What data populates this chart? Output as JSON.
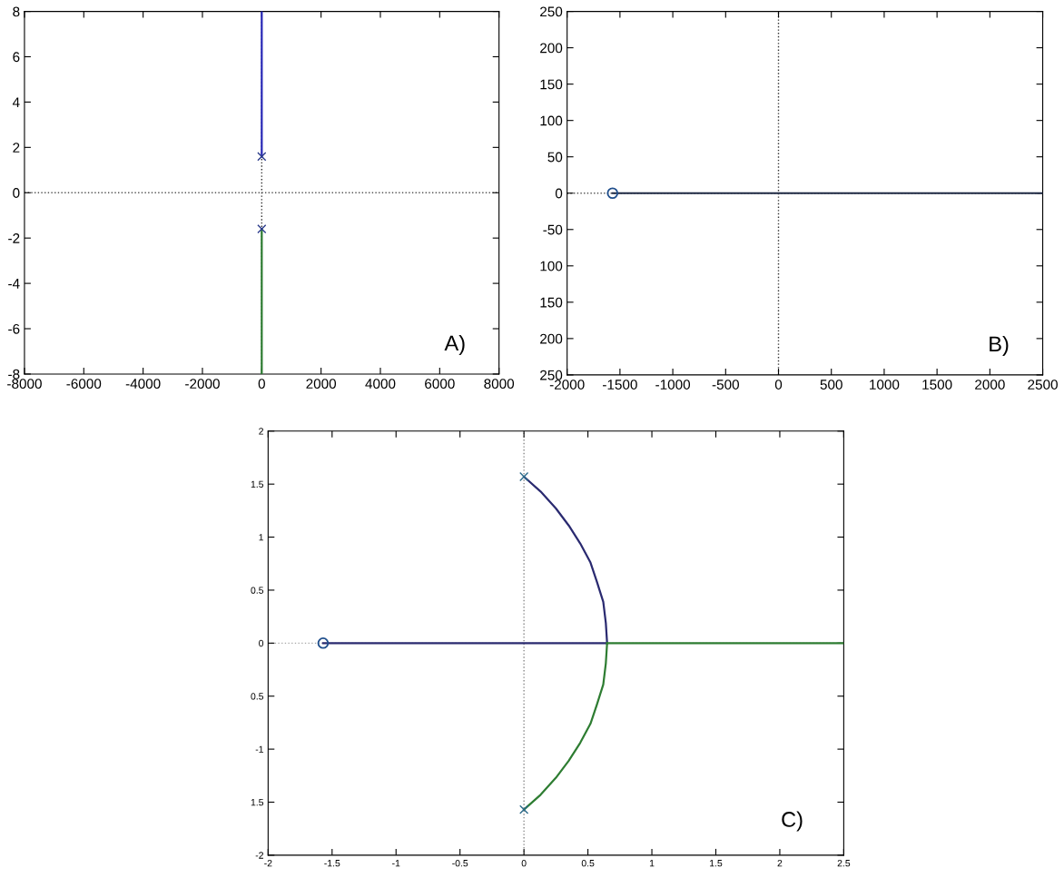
{
  "chart_data": [
    {
      "type": "line",
      "xlim": [
        -8000,
        8000
      ],
      "ylim": [
        -8,
        8
      ],
      "xticks": [
        -8000,
        -6000,
        -4000,
        -2000,
        0,
        2000,
        4000,
        6000,
        8000
      ],
      "yticks": [
        -8,
        -6,
        -4,
        -2,
        0,
        2,
        4,
        6,
        8
      ],
      "grid": false,
      "annotations": [
        "A)"
      ],
      "ref_lines": [
        {
          "axis": "x",
          "value": 0,
          "color": "#333333",
          "line_style": "dotted"
        },
        {
          "axis": "y",
          "value": 0,
          "color": "#555555",
          "line_style": "dotted"
        }
      ],
      "series": [
        {
          "type": "line",
          "color": "#2a2ab8",
          "x": [
            0,
            0
          ],
          "values": [
            1.6,
            8
          ]
        },
        {
          "type": "line",
          "color": "#2e7d32",
          "x": [
            0,
            0
          ],
          "values": [
            -1.6,
            -8
          ]
        },
        {
          "type": "scatter",
          "marker": "cross",
          "color": "#2a3a8a",
          "x": [
            0,
            0
          ],
          "values": [
            1.6,
            -1.6
          ]
        }
      ]
    },
    {
      "type": "line",
      "xlim": [
        -2000,
        2500
      ],
      "ylim": [
        -250,
        250
      ],
      "xticks": [
        -2000,
        -1500,
        -1000,
        -500,
        0,
        500,
        1000,
        1500,
        2000,
        2500
      ],
      "yticks": [
        {
          "value": -250,
          "label": "250"
        },
        {
          "value": -200,
          "label": "200"
        },
        {
          "value": -150,
          "label": "150"
        },
        {
          "value": -100,
          "label": "100"
        },
        -50,
        0,
        50,
        100,
        150,
        200,
        250
      ],
      "grid": false,
      "annotations": [
        "B)"
      ],
      "ref_lines": [
        {
          "axis": "x",
          "value": 0,
          "color": "#333333",
          "line_style": "dotted"
        },
        {
          "axis": "y",
          "value": 0,
          "color": "#555555",
          "line_style": "dotted"
        }
      ],
      "series": [
        {
          "type": "line",
          "color": "#1f2a44",
          "x": [
            -1570,
            2500
          ],
          "values": [
            0,
            0
          ]
        },
        {
          "type": "scatter",
          "marker": "circle",
          "color": "#1f4e8c",
          "x": [
            -1570
          ],
          "values": [
            0
          ]
        }
      ]
    },
    {
      "type": "line",
      "xlim": [
        -2,
        2.5
      ],
      "ylim": [
        -2,
        2
      ],
      "xticks": [
        -2,
        -1.5,
        -1,
        -0.5,
        0,
        0.5,
        1,
        1.5,
        2,
        2.5
      ],
      "yticks": [
        {
          "value": -2,
          "label": "-2"
        },
        {
          "value": -1.5,
          "label": "1.5"
        },
        {
          "value": -1,
          "label": "-1"
        },
        {
          "value": -0.5,
          "label": "0.5"
        },
        0,
        0.5,
        1,
        1.5,
        2
      ],
      "grid": false,
      "annotations": [
        "C)"
      ],
      "ref_lines": [
        {
          "axis": "x",
          "value": 0,
          "color": "#888888",
          "line_style": "dotted"
        },
        {
          "axis": "y",
          "value": 0,
          "color": "#aaaaaa",
          "line_style": "dotted"
        }
      ],
      "series": [
        {
          "type": "line",
          "color": "#2a2a70",
          "x": [
            0.0,
            0.13,
            0.25,
            0.35,
            0.44,
            0.52,
            0.57,
            0.62,
            0.64,
            0.65
          ],
          "values": [
            1.57,
            1.43,
            1.27,
            1.11,
            0.94,
            0.76,
            0.58,
            0.39,
            0.19,
            0
          ]
        },
        {
          "type": "line",
          "color": "#2a2a70",
          "x": [
            -1.57,
            0.65
          ],
          "values": [
            0,
            0
          ]
        },
        {
          "type": "line",
          "color": "#2e7d32",
          "x": [
            0.0,
            0.13,
            0.25,
            0.35,
            0.44,
            0.52,
            0.57,
            0.62,
            0.64,
            0.65
          ],
          "values": [
            -1.57,
            -1.43,
            -1.27,
            -1.11,
            -0.94,
            -0.76,
            -0.58,
            -0.39,
            -0.19,
            0
          ]
        },
        {
          "type": "line",
          "color": "#2e7d32",
          "x": [
            0.65,
            2.5
          ],
          "values": [
            0,
            0
          ]
        },
        {
          "type": "scatter",
          "marker": "cross",
          "color": "#2a6a8a",
          "x": [
            0,
            0
          ],
          "values": [
            1.57,
            -1.57
          ]
        },
        {
          "type": "scatter",
          "marker": "circle",
          "color": "#1f4e8c",
          "x": [
            -1.57
          ],
          "values": [
            0
          ]
        }
      ]
    }
  ]
}
